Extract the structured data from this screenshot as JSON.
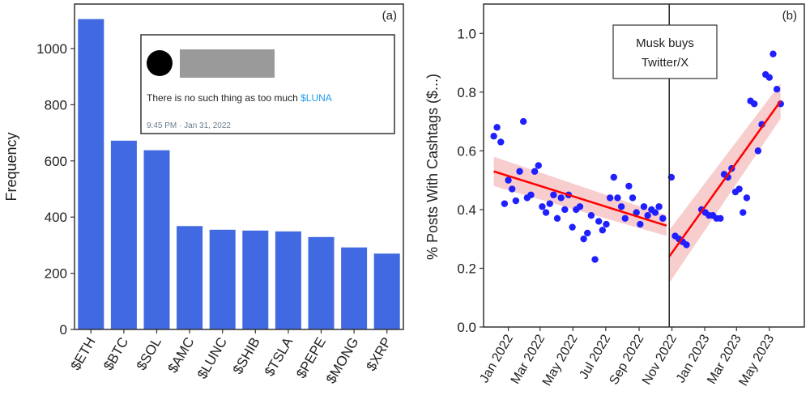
{
  "chart_data": [
    {
      "type": "bar",
      "panel_label": "(a)",
      "ylabel": "Frequency",
      "categories": [
        "$ETH",
        "$BTC",
        "$SOL",
        "$AMC",
        "$LUNC",
        "$SHIB",
        "$TSLA",
        "$PEPE",
        "$MONG",
        "$XRP"
      ],
      "values": [
        1105,
        672,
        638,
        368,
        355,
        352,
        349,
        329,
        292,
        270
      ],
      "ylim": [
        0,
        1100
      ],
      "yticks": [
        "0",
        "200",
        "400",
        "600",
        "800",
        "1000"
      ],
      "bar_color": "#4169e1",
      "inset_tweet": {
        "text_before": "There is no such thing as too much ",
        "cashtag": "$LUNA",
        "timestamp": "9:45 PM · Jan 31, 2022",
        "cashtag_color": "#1d9bf0"
      }
    },
    {
      "type": "scatter",
      "panel_label": "(b)",
      "ylabel": "% Posts With Cashtags ($...)",
      "ylim": [
        0.0,
        1.1
      ],
      "yticks": [
        "0.0",
        "0.2",
        "0.4",
        "0.6",
        "0.8",
        "1.0"
      ],
      "xlim": [
        "2021-11-16",
        "2023-07-05"
      ],
      "xticks": [
        {
          "date": "2022-01-01",
          "label": "Jan 2022"
        },
        {
          "date": "2022-03-01",
          "label": "Mar 2022"
        },
        {
          "date": "2022-05-01",
          "label": "May 2022"
        },
        {
          "date": "2022-07-01",
          "label": "Jul 2022"
        },
        {
          "date": "2022-09-01",
          "label": "Sep 2022"
        },
        {
          "date": "2022-11-01",
          "label": "Nov 2022"
        },
        {
          "date": "2023-01-01",
          "label": "Jan 2023"
        },
        {
          "date": "2023-03-01",
          "label": "Mar 2023"
        },
        {
          "date": "2023-05-01",
          "label": "May 2023"
        }
      ],
      "point_color": "#1f1fff",
      "trend_color": "#ff0000",
      "band_color": "#f7c4c4",
      "event": {
        "date": "2022-10-27",
        "label_line1": "Musk buys",
        "label_line2": "Twitter/X"
      },
      "points": [
        {
          "x": "2021-12-05",
          "y": 0.65
        },
        {
          "x": "2021-12-11",
          "y": 0.68
        },
        {
          "x": "2021-12-18",
          "y": 0.63
        },
        {
          "x": "2021-12-25",
          "y": 0.42
        },
        {
          "x": "2022-01-01",
          "y": 0.5
        },
        {
          "x": "2022-01-08",
          "y": 0.47
        },
        {
          "x": "2022-01-15",
          "y": 0.43
        },
        {
          "x": "2022-01-22",
          "y": 0.53
        },
        {
          "x": "2022-01-29",
          "y": 0.7
        },
        {
          "x": "2022-02-05",
          "y": 0.44
        },
        {
          "x": "2022-02-12",
          "y": 0.45
        },
        {
          "x": "2022-02-19",
          "y": 0.53
        },
        {
          "x": "2022-02-26",
          "y": 0.55
        },
        {
          "x": "2022-03-05",
          "y": 0.41
        },
        {
          "x": "2022-03-12",
          "y": 0.39
        },
        {
          "x": "2022-03-19",
          "y": 0.42
        },
        {
          "x": "2022-03-26",
          "y": 0.45
        },
        {
          "x": "2022-04-02",
          "y": 0.37
        },
        {
          "x": "2022-04-09",
          "y": 0.44
        },
        {
          "x": "2022-04-16",
          "y": 0.4
        },
        {
          "x": "2022-04-23",
          "y": 0.45
        },
        {
          "x": "2022-04-30",
          "y": 0.34
        },
        {
          "x": "2022-05-07",
          "y": 0.4
        },
        {
          "x": "2022-05-14",
          "y": 0.41
        },
        {
          "x": "2022-05-21",
          "y": 0.3
        },
        {
          "x": "2022-05-28",
          "y": 0.32
        },
        {
          "x": "2022-06-04",
          "y": 0.38
        },
        {
          "x": "2022-06-11",
          "y": 0.23
        },
        {
          "x": "2022-06-18",
          "y": 0.36
        },
        {
          "x": "2022-06-25",
          "y": 0.33
        },
        {
          "x": "2022-07-02",
          "y": 0.35
        },
        {
          "x": "2022-07-09",
          "y": 0.44
        },
        {
          "x": "2022-07-16",
          "y": 0.51
        },
        {
          "x": "2022-07-23",
          "y": 0.44
        },
        {
          "x": "2022-07-30",
          "y": 0.41
        },
        {
          "x": "2022-08-06",
          "y": 0.37
        },
        {
          "x": "2022-08-13",
          "y": 0.48
        },
        {
          "x": "2022-08-20",
          "y": 0.44
        },
        {
          "x": "2022-08-27",
          "y": 0.39
        },
        {
          "x": "2022-09-03",
          "y": 0.35
        },
        {
          "x": "2022-09-10",
          "y": 0.41
        },
        {
          "x": "2022-09-17",
          "y": 0.38
        },
        {
          "x": "2022-09-24",
          "y": 0.4
        },
        {
          "x": "2022-10-01",
          "y": 0.39
        },
        {
          "x": "2022-10-08",
          "y": 0.41
        },
        {
          "x": "2022-10-15",
          "y": 0.37
        },
        {
          "x": "2022-10-31",
          "y": 0.51
        },
        {
          "x": "2022-11-07",
          "y": 0.31
        },
        {
          "x": "2022-11-14",
          "y": 0.3
        },
        {
          "x": "2022-11-21",
          "y": 0.29
        },
        {
          "x": "2022-11-28",
          "y": 0.28
        },
        {
          "x": "2022-12-26",
          "y": 0.4
        },
        {
          "x": "2023-01-02",
          "y": 0.39
        },
        {
          "x": "2023-01-09",
          "y": 0.38
        },
        {
          "x": "2023-01-16",
          "y": 0.38
        },
        {
          "x": "2023-01-23",
          "y": 0.37
        },
        {
          "x": "2023-01-30",
          "y": 0.37
        },
        {
          "x": "2023-02-06",
          "y": 0.52
        },
        {
          "x": "2023-02-13",
          "y": 0.51
        },
        {
          "x": "2023-02-20",
          "y": 0.54
        },
        {
          "x": "2023-02-27",
          "y": 0.46
        },
        {
          "x": "2023-03-06",
          "y": 0.47
        },
        {
          "x": "2023-03-13",
          "y": 0.39
        },
        {
          "x": "2023-03-20",
          "y": 0.44
        },
        {
          "x": "2023-03-27",
          "y": 0.77
        },
        {
          "x": "2023-04-03",
          "y": 0.76
        },
        {
          "x": "2023-04-10",
          "y": 0.6
        },
        {
          "x": "2023-04-17",
          "y": 0.69
        },
        {
          "x": "2023-04-24",
          "y": 0.86
        },
        {
          "x": "2023-05-01",
          "y": 0.85
        },
        {
          "x": "2023-05-08",
          "y": 0.93
        },
        {
          "x": "2023-05-15",
          "y": 0.81
        },
        {
          "x": "2023-05-22",
          "y": 0.76
        }
      ],
      "trend_segments": [
        {
          "x0": "2021-12-05",
          "y0": 0.53,
          "x1": "2022-10-22",
          "y1": 0.345,
          "band0": 0.05,
          "band1": 0.035
        },
        {
          "x0": "2022-10-27",
          "y0": 0.24,
          "x1": "2023-05-22",
          "y1": 0.77,
          "band0": 0.09,
          "band1": 0.06
        }
      ]
    }
  ]
}
